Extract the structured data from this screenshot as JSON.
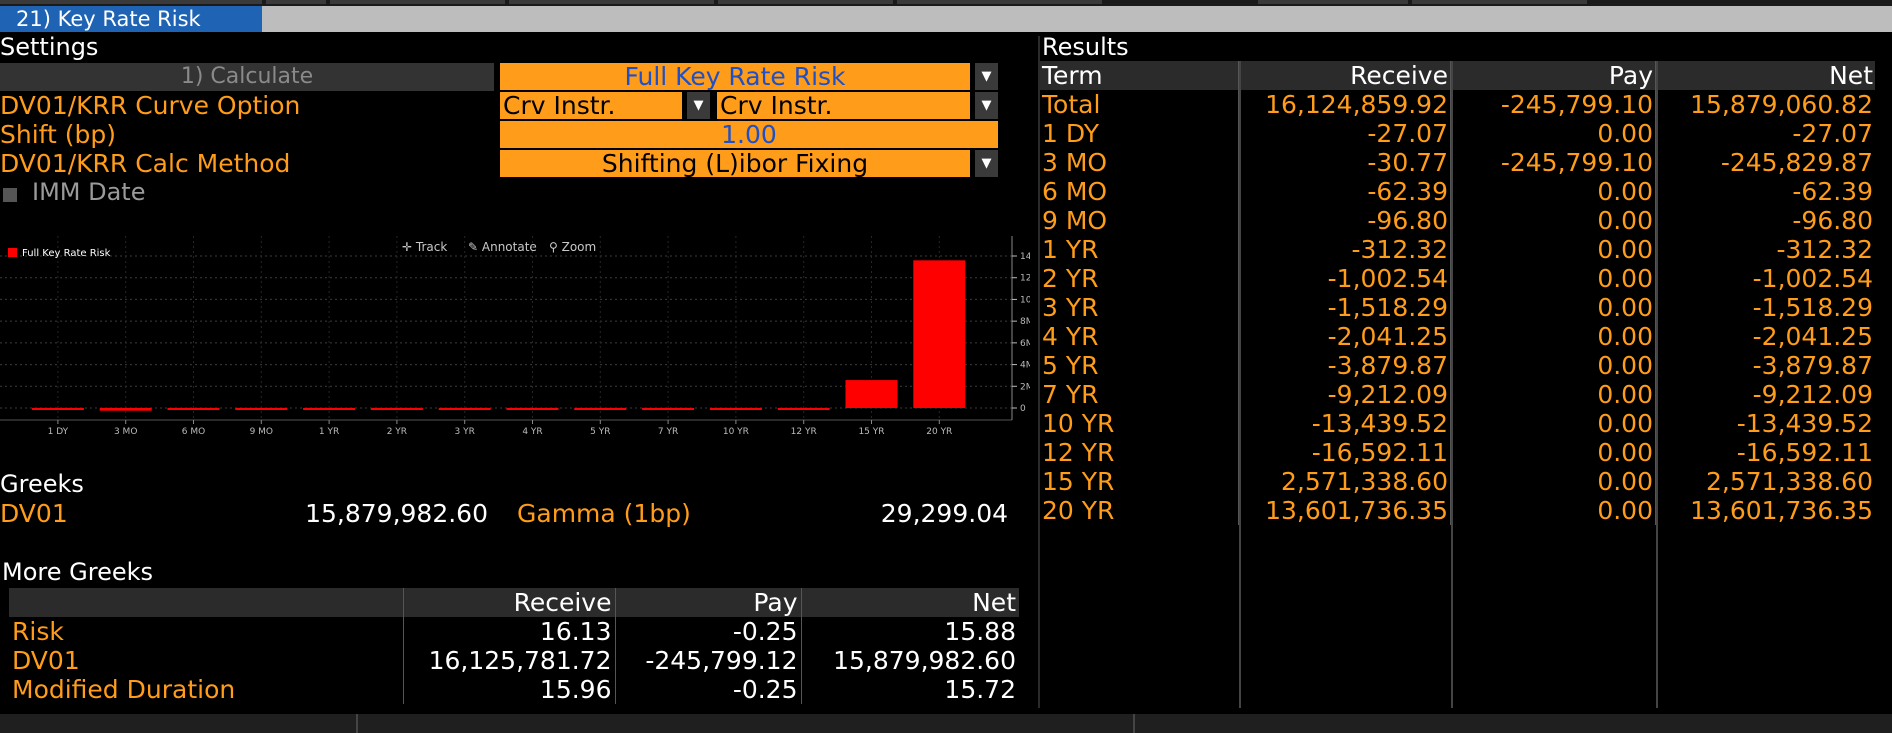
{
  "window": {
    "title": "21) Key Rate Risk"
  },
  "settings": {
    "header": "Settings",
    "calculate_label": "1) Calculate",
    "mode_value": "Full Key Rate Risk",
    "curve_option_label": "DV01/KRR Curve Option",
    "curve_option_value_1": "Crv Instr.",
    "curve_option_value_2": "Crv Instr.",
    "shift_label": "Shift (bp)",
    "shift_value": "1.00",
    "calc_method_label": "DV01/KRR Calc Method",
    "calc_method_value": "Shifting (L)ibor Fixing",
    "imm_label": "IMM Date"
  },
  "chart_toolbar": {
    "track": "Track",
    "annotate": "Annotate",
    "zoom": "Zoom"
  },
  "chart_data": {
    "type": "bar",
    "title": "",
    "legend": [
      "Full Key Rate Risk"
    ],
    "categories": [
      "1 DY",
      "3 MO",
      "6 MO",
      "9 MO",
      "1 YR",
      "2 YR",
      "3 YR",
      "4 YR",
      "5 YR",
      "7 YR",
      "10 YR",
      "12 YR",
      "15 YR",
      "20 YR"
    ],
    "series": [
      {
        "name": "Full Key Rate Risk",
        "color": "#ff0000",
        "values": [
          -27.07,
          -245829.87,
          -62.39,
          -96.8,
          -312.32,
          -1002.54,
          -1518.29,
          -2041.25,
          -3879.87,
          -9212.09,
          -13439.52,
          -16592.11,
          2571338.6,
          13601736.35
        ]
      }
    ],
    "yticks": [
      "0",
      "2M",
      "4M",
      "6M",
      "8M",
      "10M",
      "12M",
      "14M"
    ],
    "ylim": [
      -300000,
      14800000
    ]
  },
  "greeks": {
    "header": "Greeks",
    "dv01_label": "DV01",
    "dv01_value": "15,879,982.60",
    "gamma_label": "Gamma (1bp)",
    "gamma_value": "29,299.04"
  },
  "more_greeks": {
    "header": "More Greeks",
    "columns": [
      "",
      "Receive",
      "Pay",
      "Net"
    ],
    "rows": [
      {
        "label": "Risk",
        "receive": "16.13",
        "pay": "-0.25",
        "net": "15.88"
      },
      {
        "label": "DV01",
        "receive": "16,125,781.72",
        "pay": "-245,799.12",
        "net": "15,879,982.60"
      },
      {
        "label": "Modified Duration",
        "receive": "15.96",
        "pay": "-0.25",
        "net": "15.72"
      }
    ]
  },
  "results": {
    "header": "Results",
    "columns": [
      "Term",
      "Receive",
      "Pay",
      "Net"
    ],
    "rows": [
      {
        "term": "Total",
        "receive": "16,124,859.92",
        "pay": "-245,799.10",
        "net": "15,879,060.82"
      },
      {
        "term": "1 DY",
        "receive": "-27.07",
        "pay": "0.00",
        "net": "-27.07"
      },
      {
        "term": "3 MO",
        "receive": "-30.77",
        "pay": "-245,799.10",
        "net": "-245,829.87"
      },
      {
        "term": "6 MO",
        "receive": "-62.39",
        "pay": "0.00",
        "net": "-62.39"
      },
      {
        "term": "9 MO",
        "receive": "-96.80",
        "pay": "0.00",
        "net": "-96.80"
      },
      {
        "term": "1 YR",
        "receive": "-312.32",
        "pay": "0.00",
        "net": "-312.32"
      },
      {
        "term": "2 YR",
        "receive": "-1,002.54",
        "pay": "0.00",
        "net": "-1,002.54"
      },
      {
        "term": "3 YR",
        "receive": "-1,518.29",
        "pay": "0.00",
        "net": "-1,518.29"
      },
      {
        "term": "4 YR",
        "receive": "-2,041.25",
        "pay": "0.00",
        "net": "-2,041.25"
      },
      {
        "term": "5 YR",
        "receive": "-3,879.87",
        "pay": "0.00",
        "net": "-3,879.87"
      },
      {
        "term": "7 YR",
        "receive": "-9,212.09",
        "pay": "0.00",
        "net": "-9,212.09"
      },
      {
        "term": "10 YR",
        "receive": "-13,439.52",
        "pay": "0.00",
        "net": "-13,439.52"
      },
      {
        "term": "12 YR",
        "receive": "-16,592.11",
        "pay": "0.00",
        "net": "-16,592.11"
      },
      {
        "term": "15 YR",
        "receive": "2,571,338.60",
        "pay": "0.00",
        "net": "2,571,338.60"
      },
      {
        "term": "20 YR",
        "receive": "13,601,736.35",
        "pay": "0.00",
        "net": "13,601,736.35"
      }
    ]
  }
}
